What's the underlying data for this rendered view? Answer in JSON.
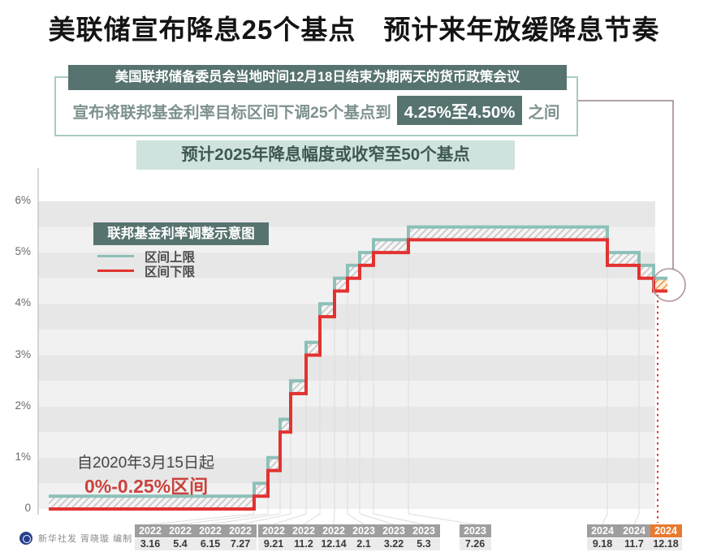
{
  "title": "美联储宣布降息25个基点　预计来年放缓降息节奏",
  "info_box": {
    "line1": "美国联邦储备委员会当地时间12月18日结束为期两天的货币政策会议",
    "line2_prefix": "宣布将联邦基金利率目标区间下调25个基点到",
    "line2_highlight": "4.25%至4.50%",
    "line2_suffix": "之间"
  },
  "forecast_box": "预计2025年降息幅度或收窄至50个基点",
  "chart": {
    "legend_title": "联邦基金利率调整示意图",
    "legend_upper": "区间上限",
    "legend_lower": "区间下限",
    "annotation_line1": "自2020年3月15日起",
    "annotation_line2": "0%-0.25%区间"
  },
  "credit": "新华社发 胥晓璇 编制",
  "colors": {
    "upper_line": "#8cc0b8",
    "lower_line": "#e23230",
    "highlight_orange": "#e87a2f",
    "orange_hatch": "#efa052",
    "orange_hatch_bg": "#fdeede",
    "gray_hatch": "#c3c3c3",
    "gray_hatch_bg": "#f6f6f6",
    "dark_teal": "#577370",
    "light_teal": "#cfe2de",
    "border_teal": "#a9cac4",
    "callout": "#9c8083",
    "circle": "#b29497",
    "stripe_dark": "#e7e7e7",
    "stripe_light": "#f1f1f1",
    "axis": "#c9c9c9",
    "connector": "#dcdcdc",
    "annotation_red": "#c9433e"
  },
  "chart_data": {
    "type": "line",
    "subtype": "step-range",
    "title": "联邦基金利率调整示意图",
    "unit": "%",
    "ylim": [
      0,
      6
    ],
    "y_ticks": [
      "0",
      "1%",
      "2%",
      "3%",
      "4%",
      "5%",
      "6%"
    ],
    "legend": [
      "区间上限",
      "区间下限"
    ],
    "start": {
      "year": "2020",
      "date": "3.15",
      "lower": 0,
      "upper": 0.25
    },
    "events": [
      {
        "year": "2022",
        "date": "3.16",
        "lower": 0.25,
        "upper": 0.5
      },
      {
        "year": "2022",
        "date": "5.4",
        "lower": 0.75,
        "upper": 1.0
      },
      {
        "year": "2022",
        "date": "6.15",
        "lower": 1.5,
        "upper": 1.75
      },
      {
        "year": "2022",
        "date": "7.27",
        "lower": 2.25,
        "upper": 2.5
      },
      {
        "year": "2022",
        "date": "9.21",
        "lower": 3.0,
        "upper": 3.25
      },
      {
        "year": "2022",
        "date": "11.2",
        "lower": 3.75,
        "upper": 4.0
      },
      {
        "year": "2022",
        "date": "12.14",
        "lower": 4.25,
        "upper": 4.5
      },
      {
        "year": "2023",
        "date": "2.1",
        "lower": 4.5,
        "upper": 4.75
      },
      {
        "year": "2023",
        "date": "3.22",
        "lower": 4.75,
        "upper": 5.0
      },
      {
        "year": "2023",
        "date": "5.3",
        "lower": 5.0,
        "upper": 5.25
      },
      {
        "year": "2023",
        "date": "7.26",
        "lower": 5.25,
        "upper": 5.5
      },
      {
        "year": "2024",
        "date": "9.18",
        "lower": 4.75,
        "upper": 5.0
      },
      {
        "year": "2024",
        "date": "11.7",
        "lower": 4.5,
        "upper": 4.75
      },
      {
        "year": "2024",
        "date": "12.18",
        "lower": 4.25,
        "upper": 4.5,
        "highlight": true
      }
    ]
  }
}
